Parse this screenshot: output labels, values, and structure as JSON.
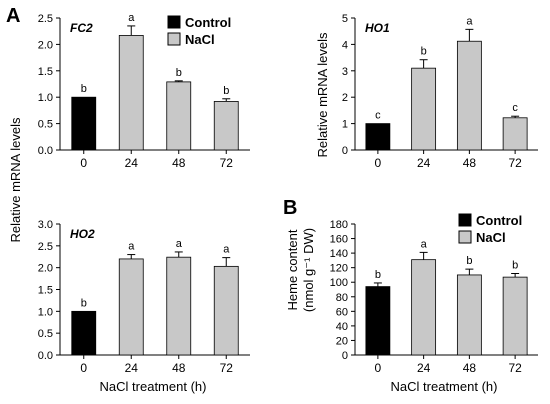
{
  "figure": {
    "panel_a_letter": "A",
    "panel_b_letter": "B",
    "shared_ylabel": "Relative mRNA levels",
    "shared_xlabel": "NaCl treatment (h)",
    "b_xlabel": "NaCl treatment (h)"
  },
  "legend": {
    "control": "Control",
    "nacl": "NaCl"
  },
  "colors": {
    "control": "#000000",
    "nacl": "#c8c8c8"
  },
  "chart_data": [
    {
      "type": "bar",
      "title": "FC2",
      "categories": [
        "0",
        "24",
        "48",
        "72"
      ],
      "values": [
        1.0,
        2.17,
        1.29,
        0.92
      ],
      "errors": [
        0.0,
        0.18,
        0.02,
        0.05
      ],
      "letters": [
        "b",
        "a",
        "b",
        "b"
      ],
      "ylim": [
        0,
        2.5
      ],
      "yticks": [
        "0.0",
        "0.5",
        "1.0",
        "1.5",
        "2.0",
        "2.5"
      ],
      "legend": "top-right"
    },
    {
      "type": "bar",
      "title": "HO1",
      "ylabel": "Relative mRNA levels",
      "categories": [
        "0",
        "24",
        "48",
        "72"
      ],
      "values": [
        1.0,
        3.1,
        4.12,
        1.22
      ],
      "errors": [
        0.0,
        0.32,
        0.45,
        0.06
      ],
      "letters": [
        "c",
        "b",
        "a",
        "c"
      ],
      "ylim": [
        0,
        5
      ],
      "yticks": [
        "0",
        "1",
        "2",
        "3",
        "4",
        "5"
      ]
    },
    {
      "type": "bar",
      "title": "HO2",
      "categories": [
        "0",
        "24",
        "48",
        "72"
      ],
      "values": [
        1.0,
        2.2,
        2.24,
        2.03
      ],
      "errors": [
        0.0,
        0.1,
        0.12,
        0.2
      ],
      "letters": [
        "b",
        "a",
        "a",
        "a"
      ],
      "ylim": [
        0,
        3.0
      ],
      "yticks": [
        "0.0",
        "0.5",
        "1.0",
        "1.5",
        "2.0",
        "2.5",
        "3.0"
      ]
    },
    {
      "type": "bar",
      "ylabel_line1": "Heme content",
      "ylabel_line2": "(nmol g⁻¹ DW)",
      "xlabel": "NaCl treatment (h)",
      "categories": [
        "0",
        "24",
        "48",
        "72"
      ],
      "values": [
        94,
        131,
        110,
        107
      ],
      "errors": [
        5,
        10,
        8,
        5
      ],
      "letters": [
        "b",
        "a",
        "b",
        "b"
      ],
      "ylim": [
        0,
        180
      ],
      "yticks": [
        "0",
        "20",
        "40",
        "60",
        "80",
        "100",
        "120",
        "140",
        "160",
        "180"
      ],
      "legend": "top-left"
    }
  ]
}
